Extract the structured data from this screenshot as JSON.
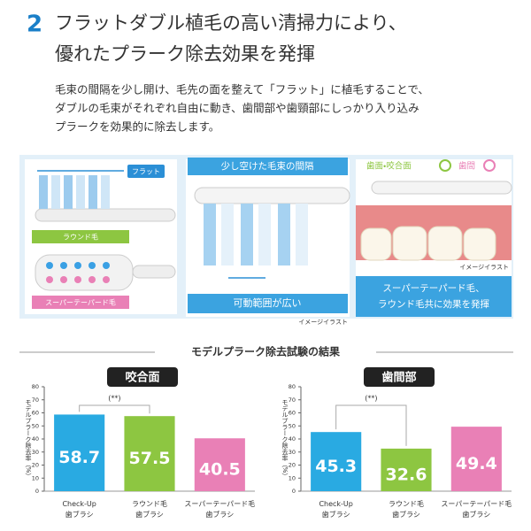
{
  "header": {
    "number": "2",
    "title": [
      "フラットダブル植毛の高い清掃力により、",
      "優れたプラーク除去効果を発揮"
    ]
  },
  "description": [
    "毛束の間隔を少し開け、毛先の面を整えて「フラット」に植毛することで、",
    "ダブルの毛束がそれぞれ自由に動き、歯間部や歯頸部にしっかり入り込み",
    "プラークを効果的に除去します。"
  ],
  "illustration": {
    "left": {
      "flat": "フラット",
      "round": "ラウンド毛",
      "tapered": "スーパーテーパード毛"
    },
    "middle": {
      "title": "少し空けた毛束の間隔",
      "caption": "可動範囲が広い",
      "note": "イメージイラスト"
    },
    "right": {
      "legend": [
        "歯面・咬合面",
        "歯間"
      ],
      "note": "イメージイラスト",
      "caption": [
        "スーパーテーパード毛、",
        "ラウンド毛共に効果を発揮"
      ]
    }
  },
  "results_title": "モデルプラーク除去試験の結果",
  "chart_data": [
    {
      "type": "bar",
      "title": "咬合面",
      "ylabel": "モデルプラーク除去率（%）",
      "categories": [
        "Check-Up\n歯ブラシ",
        "ラウンド毛\n歯ブラシ",
        "スーパーテーパード毛\n歯ブラシ"
      ],
      "values": [
        58.7,
        57.5,
        40.5
      ],
      "colors": [
        "#29aae2",
        "#8dc641",
        "#e980b6"
      ],
      "ylim": [
        0,
        80
      ],
      "yticks": [
        0,
        10,
        20,
        30,
        40,
        50,
        60,
        70,
        80
      ],
      "annotation": "(**)"
    },
    {
      "type": "bar",
      "title": "歯間部",
      "ylabel": "モデルプラーク除去率（%）",
      "categories": [
        "Check-Up\n歯ブラシ",
        "ラウンド毛\n歯ブラシ",
        "スーパーテーパード毛\n歯ブラシ"
      ],
      "values": [
        45.3,
        32.6,
        49.4
      ],
      "colors": [
        "#29aae2",
        "#8dc641",
        "#e980b6"
      ],
      "ylim": [
        0,
        80
      ],
      "yticks": [
        0,
        10,
        20,
        30,
        40,
        50,
        60,
        70,
        80
      ],
      "annotation": "(**)"
    }
  ]
}
